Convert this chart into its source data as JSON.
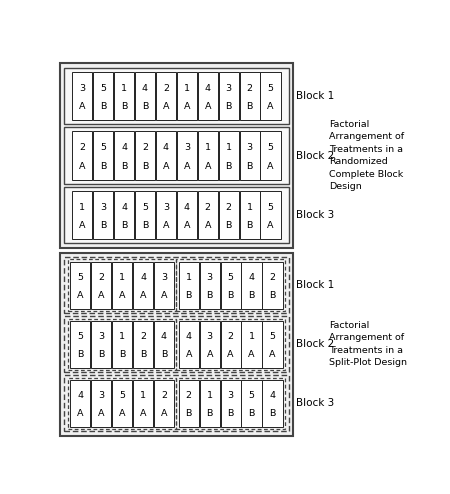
{
  "rcbd": {
    "title": "Factorial\nArrangement of\nTreatments in a\nRandomized\nComplete Block\nDesign",
    "blocks": [
      {
        "label": "Block 1",
        "cells": [
          [
            "3",
            "A"
          ],
          [
            "5",
            "B"
          ],
          [
            "1",
            "B"
          ],
          [
            "4",
            "B"
          ],
          [
            "2",
            "A"
          ],
          [
            "1",
            "A"
          ],
          [
            "4",
            "A"
          ],
          [
            "3",
            "B"
          ],
          [
            "2",
            "B"
          ],
          [
            "5",
            "A"
          ]
        ]
      },
      {
        "label": "Block 2",
        "cells": [
          [
            "2",
            "A"
          ],
          [
            "5",
            "B"
          ],
          [
            "4",
            "B"
          ],
          [
            "2",
            "B"
          ],
          [
            "4",
            "A"
          ],
          [
            "3",
            "A"
          ],
          [
            "1",
            "A"
          ],
          [
            "1",
            "B"
          ],
          [
            "3",
            "B"
          ],
          [
            "5",
            "A"
          ]
        ]
      },
      {
        "label": "Block 3",
        "cells": [
          [
            "1",
            "A"
          ],
          [
            "3",
            "B"
          ],
          [
            "4",
            "B"
          ],
          [
            "5",
            "B"
          ],
          [
            "3",
            "A"
          ],
          [
            "4",
            "A"
          ],
          [
            "2",
            "A"
          ],
          [
            "2",
            "B"
          ],
          [
            "1",
            "B"
          ],
          [
            "5",
            "A"
          ]
        ]
      }
    ]
  },
  "splitplot": {
    "title": "Factorial\nArrangement of\nTreatments in a\nSplit-Plot Design",
    "blocks": [
      {
        "label": "Block 1",
        "groups": [
          [
            [
              "5",
              "A"
            ],
            [
              "2",
              "A"
            ],
            [
              "1",
              "A"
            ],
            [
              "4",
              "A"
            ],
            [
              "3",
              "A"
            ]
          ],
          [
            [
              "1",
              "B"
            ],
            [
              "3",
              "B"
            ],
            [
              "5",
              "B"
            ],
            [
              "4",
              "B"
            ],
            [
              "2",
              "B"
            ]
          ]
        ]
      },
      {
        "label": "Block 2",
        "groups": [
          [
            [
              "5",
              "B"
            ],
            [
              "3",
              "B"
            ],
            [
              "1",
              "B"
            ],
            [
              "2",
              "B"
            ],
            [
              "4",
              "B"
            ]
          ],
          [
            [
              "4",
              "A"
            ],
            [
              "3",
              "A"
            ],
            [
              "2",
              "A"
            ],
            [
              "1",
              "A"
            ],
            [
              "5",
              "A"
            ]
          ]
        ]
      },
      {
        "label": "Block 3",
        "groups": [
          [
            [
              "4",
              "A"
            ],
            [
              "3",
              "A"
            ],
            [
              "5",
              "A"
            ],
            [
              "1",
              "A"
            ],
            [
              "2",
              "A"
            ]
          ],
          [
            [
              "2",
              "B"
            ],
            [
              "1",
              "B"
            ],
            [
              "3",
              "B"
            ],
            [
              "5",
              "B"
            ],
            [
              "4",
              "B"
            ]
          ]
        ]
      }
    ]
  }
}
